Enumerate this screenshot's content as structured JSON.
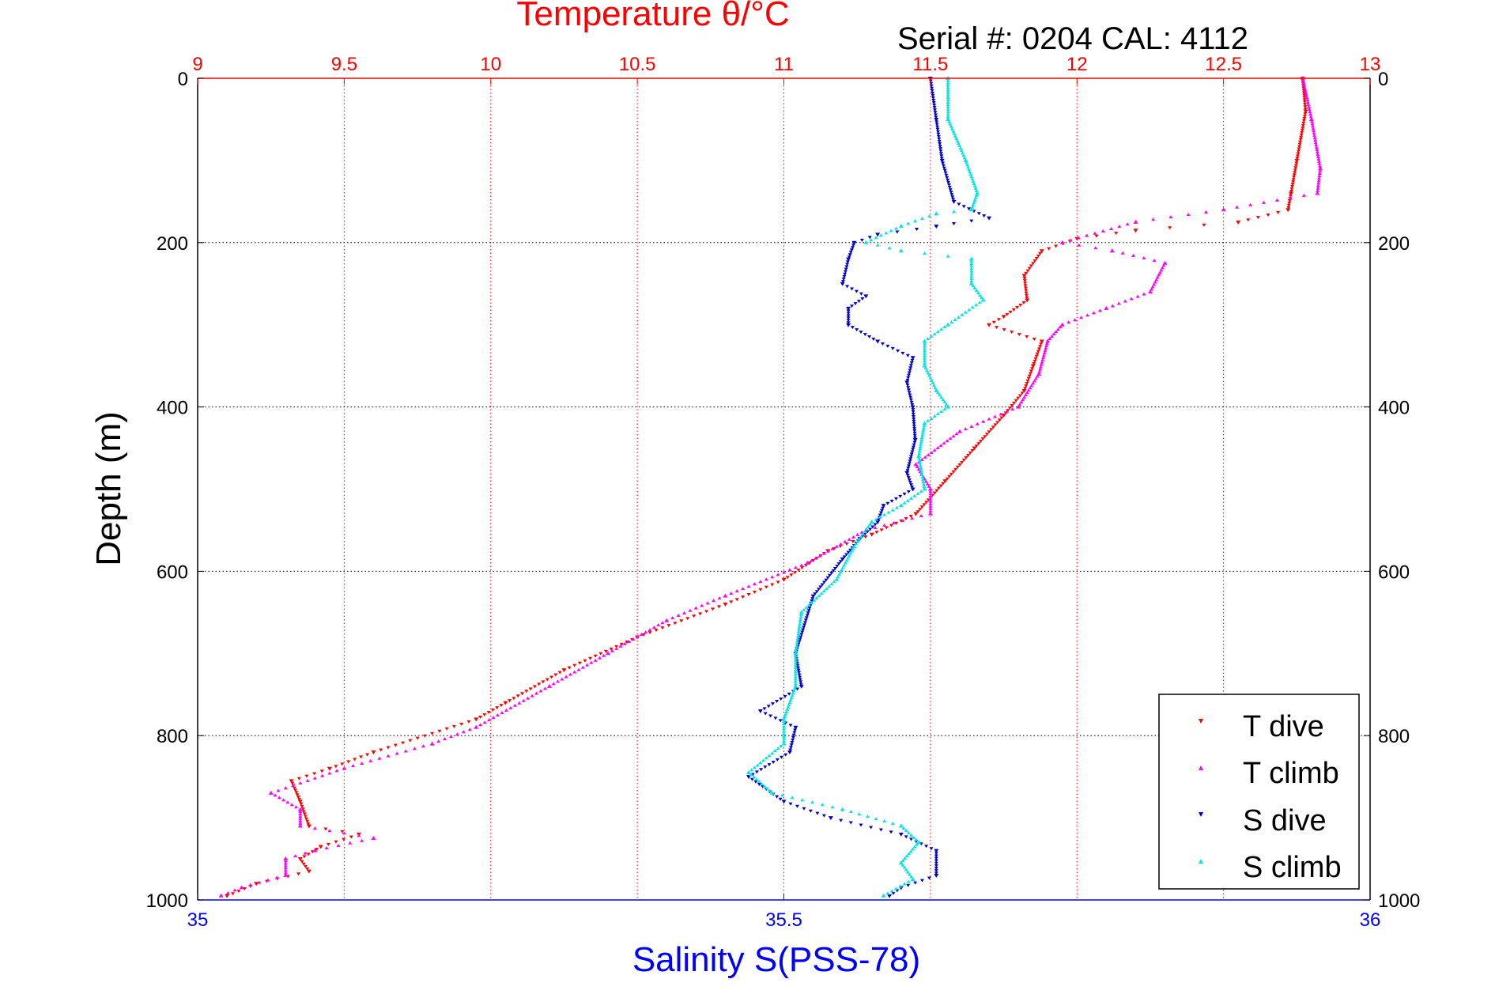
{
  "chart_data": {
    "type": "scatter",
    "title": "Temperature θ/°C",
    "subtitle": "Serial #: 0204  CAL: 4112",
    "ylabel": "Depth (m)",
    "xlabel_bottom": "Salinity S(PSS-78)",
    "y_axis": {
      "range": [
        0,
        1000
      ],
      "inverted": true,
      "ticks": [
        0,
        200,
        400,
        600,
        800,
        1000
      ],
      "tick_labels": [
        "0",
        "200",
        "400",
        "600",
        "800",
        "1000"
      ]
    },
    "x_top_temperature": {
      "range": [
        9,
        13
      ],
      "ticks": [
        9,
        9.5,
        10,
        10.5,
        11,
        11.5,
        12,
        12.5,
        13
      ],
      "tick_labels": [
        "9",
        "9.5",
        "10",
        "10.5",
        "11",
        "11.5",
        "12",
        "12.5",
        "13"
      ]
    },
    "x_bottom_salinity": {
      "range": [
        35,
        36
      ],
      "ticks": [
        35,
        35.5,
        36
      ],
      "tick_labels": [
        "35",
        "35.5",
        "36"
      ]
    },
    "grid": true,
    "legend_position": "bottom-right",
    "colors": {
      "temperature_axis": "#ff0000",
      "salinity_axis": "#0000ff",
      "T_dive": "#ff0000",
      "T_climb": "#ff00ff",
      "S_dive": "#0000cc",
      "S_climb": "#00e5e5"
    },
    "series": [
      {
        "name": "T dive",
        "axis": "temperature",
        "points": [
          [
            12.77,
            0
          ],
          [
            12.78,
            40
          ],
          [
            12.75,
            100
          ],
          [
            12.73,
            140
          ],
          [
            12.72,
            160
          ],
          [
            12.55,
            175
          ],
          [
            12.2,
            185
          ],
          [
            12.0,
            195
          ],
          [
            11.88,
            210
          ],
          [
            11.82,
            240
          ],
          [
            11.83,
            270
          ],
          [
            11.75,
            290
          ],
          [
            11.7,
            300
          ],
          [
            11.88,
            320
          ],
          [
            11.85,
            350
          ],
          [
            11.82,
            380
          ],
          [
            11.75,
            410
          ],
          [
            11.65,
            450
          ],
          [
            11.55,
            490
          ],
          [
            11.45,
            530
          ],
          [
            11.3,
            555
          ],
          [
            11.15,
            575
          ],
          [
            11.0,
            610
          ],
          [
            10.8,
            640
          ],
          [
            10.5,
            680
          ],
          [
            10.25,
            720
          ],
          [
            10.05,
            760
          ],
          [
            9.95,
            780
          ],
          [
            9.6,
            820
          ],
          [
            9.45,
            840
          ],
          [
            9.32,
            855
          ],
          [
            9.35,
            880
          ],
          [
            9.38,
            910
          ],
          [
            9.55,
            920
          ],
          [
            9.42,
            935
          ],
          [
            9.35,
            950
          ],
          [
            9.38,
            965
          ],
          [
            9.2,
            980
          ],
          [
            9.1,
            995
          ]
        ]
      },
      {
        "name": "T climb",
        "axis": "temperature",
        "points": [
          [
            12.77,
            0
          ],
          [
            12.8,
            50
          ],
          [
            12.83,
            110
          ],
          [
            12.82,
            140
          ],
          [
            12.5,
            160
          ],
          [
            12.2,
            175
          ],
          [
            11.95,
            200
          ],
          [
            12.12,
            210
          ],
          [
            12.3,
            225
          ],
          [
            12.25,
            260
          ],
          [
            12.1,
            280
          ],
          [
            11.95,
            300
          ],
          [
            11.9,
            320
          ],
          [
            11.87,
            360
          ],
          [
            11.8,
            400
          ],
          [
            11.6,
            430
          ],
          [
            11.45,
            470
          ],
          [
            11.5,
            500
          ],
          [
            11.5,
            530
          ],
          [
            11.28,
            550
          ],
          [
            11.08,
            590
          ],
          [
            10.8,
            630
          ],
          [
            10.6,
            660
          ],
          [
            10.4,
            700
          ],
          [
            10.2,
            740
          ],
          [
            9.95,
            790
          ],
          [
            9.8,
            810
          ],
          [
            9.5,
            840
          ],
          [
            9.25,
            870
          ],
          [
            9.35,
            890
          ],
          [
            9.35,
            910
          ],
          [
            9.6,
            925
          ],
          [
            9.4,
            940
          ],
          [
            9.3,
            950
          ],
          [
            9.3,
            970
          ],
          [
            9.15,
            985
          ],
          [
            9.08,
            995
          ]
        ]
      },
      {
        "name": "S dive",
        "axis": "salinity",
        "points": [
          [
            35.625,
            0
          ],
          [
            35.63,
            50
          ],
          [
            35.635,
            100
          ],
          [
            35.645,
            150
          ],
          [
            35.675,
            170
          ],
          [
            35.63,
            180
          ],
          [
            35.58,
            190
          ],
          [
            35.56,
            200
          ],
          [
            35.555,
            220
          ],
          [
            35.55,
            250
          ],
          [
            35.57,
            265
          ],
          [
            35.555,
            280
          ],
          [
            35.555,
            300
          ],
          [
            35.58,
            320
          ],
          [
            35.61,
            340
          ],
          [
            35.605,
            370
          ],
          [
            35.61,
            400
          ],
          [
            35.612,
            440
          ],
          [
            35.605,
            480
          ],
          [
            35.61,
            500
          ],
          [
            35.585,
            520
          ],
          [
            35.58,
            540
          ],
          [
            35.565,
            560
          ],
          [
            35.55,
            585
          ],
          [
            35.525,
            630
          ],
          [
            35.51,
            700
          ],
          [
            35.515,
            740
          ],
          [
            35.48,
            770
          ],
          [
            35.51,
            790
          ],
          [
            35.505,
            820
          ],
          [
            35.47,
            850
          ],
          [
            35.5,
            880
          ],
          [
            35.54,
            900
          ],
          [
            35.6,
            920
          ],
          [
            35.63,
            940
          ],
          [
            35.63,
            970
          ],
          [
            35.6,
            985
          ],
          [
            35.59,
            995
          ]
        ]
      },
      {
        "name": "S climb",
        "axis": "salinity",
        "points": [
          [
            35.64,
            0
          ],
          [
            35.64,
            50
          ],
          [
            35.655,
            100
          ],
          [
            35.665,
            140
          ],
          [
            35.66,
            160
          ],
          [
            35.63,
            165
          ],
          [
            35.6,
            180
          ],
          [
            35.57,
            200
          ],
          [
            35.6,
            210
          ],
          [
            35.66,
            220
          ],
          [
            35.66,
            250
          ],
          [
            35.67,
            270
          ],
          [
            35.64,
            300
          ],
          [
            35.62,
            320
          ],
          [
            35.62,
            350
          ],
          [
            35.63,
            380
          ],
          [
            35.64,
            400
          ],
          [
            35.62,
            420
          ],
          [
            35.615,
            460
          ],
          [
            35.62,
            500
          ],
          [
            35.6,
            520
          ],
          [
            35.575,
            540
          ],
          [
            35.56,
            570
          ],
          [
            35.545,
            610
          ],
          [
            35.515,
            650
          ],
          [
            35.51,
            700
          ],
          [
            35.51,
            740
          ],
          [
            35.5,
            780
          ],
          [
            35.5,
            810
          ],
          [
            35.47,
            845
          ],
          [
            35.49,
            870
          ],
          [
            35.55,
            890
          ],
          [
            35.6,
            910
          ],
          [
            35.615,
            930
          ],
          [
            35.6,
            955
          ],
          [
            35.61,
            975
          ],
          [
            35.585,
            995
          ]
        ]
      }
    ]
  }
}
